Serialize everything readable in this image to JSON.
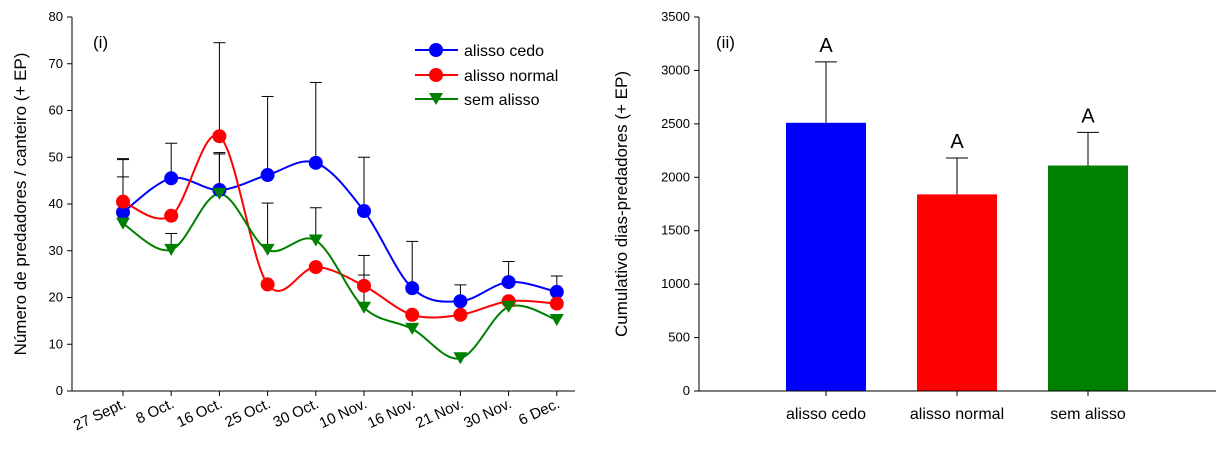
{
  "chart_data": [
    {
      "type": "line",
      "panel_label": "(i)",
      "ylabel": "Número de predadores / canteiro (+ EP)",
      "xlabel": "",
      "ylim": [
        0,
        80
      ],
      "yticks": [
        0,
        10,
        20,
        30,
        40,
        50,
        60,
        70,
        80
      ],
      "categories": [
        "27 Sept.",
        "8 Oct.",
        "16 Oct.",
        "25 Oct.",
        "30 Oct.",
        "10 Nov.",
        "16 Nov.",
        "21 Nov.",
        "30 Nov.",
        "6 Dec."
      ],
      "legend_position": "top-right",
      "series": [
        {
          "name": "alisso cedo",
          "color": "#0000ff",
          "marker": "circle",
          "values": [
            38.2,
            45.5,
            43.0,
            46.2,
            48.8,
            38.5,
            22.0,
            19.2,
            23.3,
            21.2
          ],
          "errors": [
            11.5,
            7.5,
            8.0,
            16.8,
            17.2,
            11.5,
            10.0,
            3.5,
            4.4,
            3.4
          ]
        },
        {
          "name": "alisso normal",
          "color": "#ff0000",
          "marker": "circle",
          "values": [
            40.5,
            37.5,
            54.5,
            22.8,
            26.5,
            22.5,
            16.3,
            16.3,
            19.2,
            18.7
          ],
          "errors": [
            9.0,
            0,
            20.0,
            0,
            0,
            6.5,
            0,
            0,
            0,
            0
          ]
        },
        {
          "name": "sem alisso",
          "color": "#008000",
          "marker": "triangle-down",
          "values": [
            35.8,
            30.2,
            42.2,
            30.2,
            32.2,
            17.8,
            13.3,
            7.0,
            18.0,
            15.2
          ],
          "errors": [
            10.0,
            3.5,
            8.5,
            10.0,
            7.0,
            7.0,
            0,
            0,
            0,
            0
          ]
        }
      ]
    },
    {
      "type": "bar",
      "panel_label": "(ii)",
      "ylabel": "Cumulativo dias-predadores (+ EP)",
      "xlabel": "",
      "ylim": [
        0,
        3500
      ],
      "yticks": [
        0,
        500,
        1000,
        1500,
        2000,
        2500,
        3000,
        3500
      ],
      "categories": [
        "alisso cedo",
        "alisso normal",
        "sem alisso"
      ],
      "values": [
        2510,
        1840,
        2110
      ],
      "errors": [
        570,
        340,
        310
      ],
      "colors": [
        "#0000ff",
        "#ff0000",
        "#008000"
      ],
      "significance_letters": [
        "A",
        "A",
        "A"
      ]
    }
  ]
}
